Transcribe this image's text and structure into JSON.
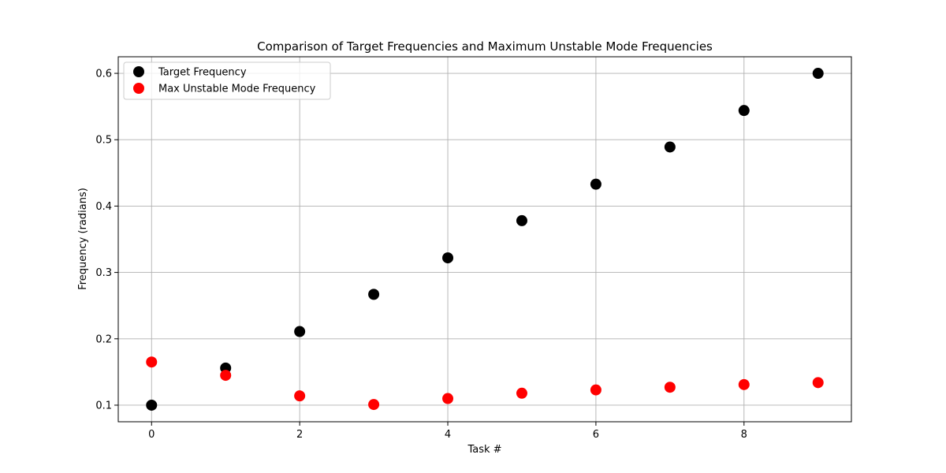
{
  "chart_data": {
    "type": "scatter",
    "title": "Comparison of Target Frequencies and Maximum Unstable Mode Frequencies",
    "xlabel": "Task #",
    "ylabel": "Frequency (radians)",
    "xlim": [
      -0.45,
      9.45
    ],
    "ylim": [
      0.075,
      0.625
    ],
    "xticks": [
      0,
      2,
      4,
      6,
      8
    ],
    "yticks": [
      0.1,
      0.2,
      0.3,
      0.4,
      0.5,
      0.6
    ],
    "xtick_labels": [
      "0",
      "2",
      "4",
      "6",
      "8"
    ],
    "ytick_labels": [
      "0.1",
      "0.2",
      "0.3",
      "0.4",
      "0.5",
      "0.6"
    ],
    "grid": true,
    "legend_position": "top-left",
    "series": [
      {
        "name": "Target Frequency",
        "color": "#000000",
        "x": [
          0,
          1,
          2,
          3,
          4,
          5,
          6,
          7,
          8,
          9
        ],
        "y": [
          0.1,
          0.156,
          0.211,
          0.267,
          0.322,
          0.378,
          0.433,
          0.489,
          0.544,
          0.6
        ]
      },
      {
        "name": "Max Unstable Mode Frequency",
        "color": "#ff0000",
        "x": [
          0,
          1,
          2,
          3,
          4,
          5,
          6,
          7,
          8,
          9
        ],
        "y": [
          0.165,
          0.145,
          0.114,
          0.101,
          0.11,
          0.118,
          0.123,
          0.127,
          0.131,
          0.134
        ]
      }
    ]
  }
}
